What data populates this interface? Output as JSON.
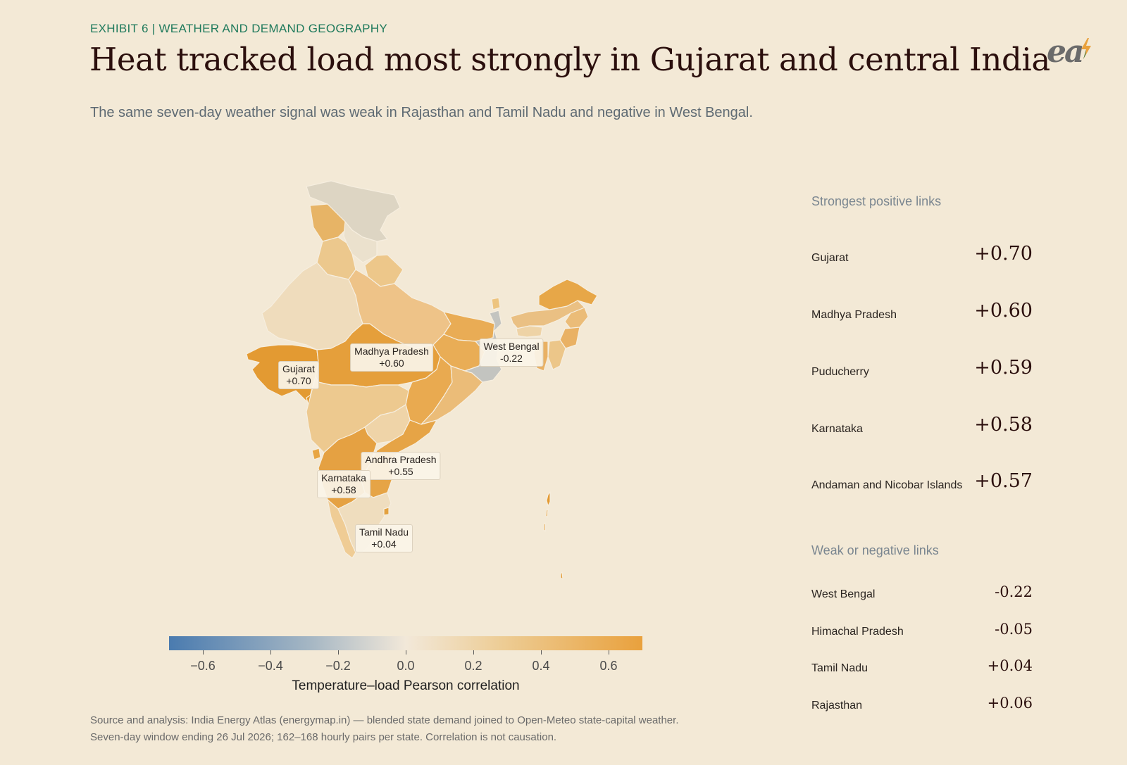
{
  "header": {
    "exhibit": "EXHIBIT 6 | WEATHER AND DEMAND GEOGRAPHY",
    "title": "Heat tracked load most strongly in Gujarat and central India",
    "subtitle": "The same seven-day weather signal was weak in Rajasthan and Tamil Nadu and negative in West Bengal."
  },
  "logo": {
    "text": "ea",
    "icon": "lightning-bolt-icon",
    "bolt_color": "#e9a13d",
    "text_color": "#6b6b6b"
  },
  "map": {
    "labels": [
      {
        "state": "Gujarat",
        "value": "+0.70"
      },
      {
        "state": "Madhya Pradesh",
        "value": "+0.60"
      },
      {
        "state": "West Bengal",
        "value": "-0.22"
      },
      {
        "state": "Andhra Pradesh",
        "value": "+0.55"
      },
      {
        "state": "Karnataka",
        "value": "+0.58"
      },
      {
        "state": "Tamil Nadu",
        "value": "+0.04"
      }
    ]
  },
  "legend": {
    "title": "Temperature–load Pearson correlation",
    "ticks": [
      "−0.6",
      "−0.4",
      "−0.2",
      "0.0",
      "0.2",
      "0.4",
      "0.6"
    ],
    "tick_values": [
      -0.6,
      -0.4,
      -0.2,
      0.0,
      0.2,
      0.4,
      0.6
    ],
    "range": [
      -0.7,
      0.7
    ],
    "colors": {
      "negative": "#4a7baf",
      "neutral": "#f2e8d9",
      "positive": "#e9a13d"
    }
  },
  "panel": {
    "positive_heading": "Strongest positive links",
    "positive": [
      {
        "name": "Gujarat",
        "value": "+0.70"
      },
      {
        "name": "Madhya Pradesh",
        "value": "+0.60"
      },
      {
        "name": "Puducherry",
        "value": "+0.59"
      },
      {
        "name": "Karnataka",
        "value": "+0.58"
      },
      {
        "name": "Andaman and Nicobar Islands",
        "value": "+0.57"
      }
    ],
    "negative_heading": "Weak or negative links",
    "negative": [
      {
        "name": "West Bengal",
        "value": "-0.22"
      },
      {
        "name": "Himachal Pradesh",
        "value": "-0.05"
      },
      {
        "name": "Tamil Nadu",
        "value": "+0.04"
      },
      {
        "name": "Rajasthan",
        "value": "+0.06"
      }
    ]
  },
  "source": {
    "line1": "Source and analysis: India Energy Atlas (energymap.in) — blended state demand joined to Open-Meteo state-capital weather.",
    "line2": "Seven-day window ending 26 Jul 2026; 162–168 hourly pairs per state. Correlation is not causation."
  }
}
